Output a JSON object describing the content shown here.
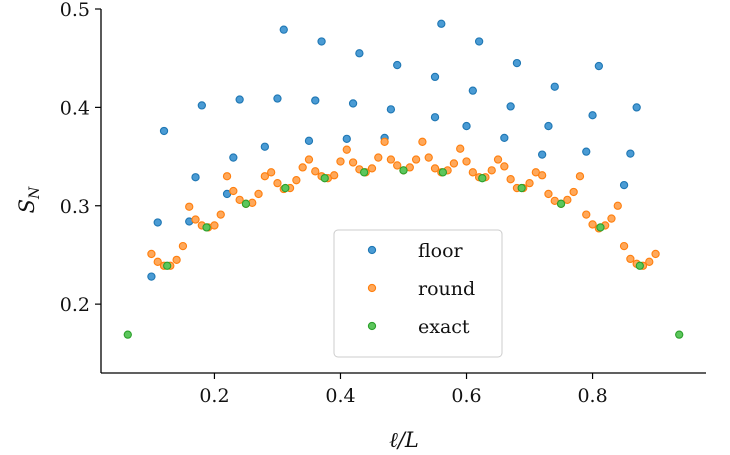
{
  "chart_data": {
    "type": "scatter",
    "xlabel": "ℓ/L",
    "ylabel": "S_N",
    "xlim": [
      0.02,
      0.98
    ],
    "ylim": [
      0.13,
      0.5
    ],
    "xticks": [
      0.2,
      0.4,
      0.6,
      0.8
    ],
    "yticks": [
      0.2,
      0.3,
      0.4,
      0.5
    ],
    "legend_position": "lower-center",
    "grid": false,
    "series": [
      {
        "name": "floor",
        "color": "#1f77b4",
        "fill": "#4a9bd4",
        "points": [
          [
            0.1,
            0.228
          ],
          [
            0.11,
            0.283
          ],
          [
            0.12,
            0.376
          ],
          [
            0.16,
            0.284
          ],
          [
            0.17,
            0.329
          ],
          [
            0.18,
            0.402
          ],
          [
            0.22,
            0.312
          ],
          [
            0.23,
            0.349
          ],
          [
            0.24,
            0.408
          ],
          [
            0.28,
            0.36
          ],
          [
            0.3,
            0.409
          ],
          [
            0.31,
            0.479
          ],
          [
            0.35,
            0.366
          ],
          [
            0.36,
            0.407
          ],
          [
            0.37,
            0.467
          ],
          [
            0.41,
            0.368
          ],
          [
            0.42,
            0.404
          ],
          [
            0.43,
            0.455
          ],
          [
            0.47,
            0.369
          ],
          [
            0.48,
            0.398
          ],
          [
            0.49,
            0.443
          ],
          [
            0.55,
            0.39
          ],
          [
            0.55,
            0.431
          ],
          [
            0.56,
            0.485
          ],
          [
            0.6,
            0.381
          ],
          [
            0.61,
            0.417
          ],
          [
            0.62,
            0.467
          ],
          [
            0.66,
            0.369
          ],
          [
            0.67,
            0.401
          ],
          [
            0.68,
            0.445
          ],
          [
            0.72,
            0.352
          ],
          [
            0.73,
            0.381
          ],
          [
            0.74,
            0.421
          ],
          [
            0.79,
            0.355
          ],
          [
            0.8,
            0.392
          ],
          [
            0.81,
            0.442
          ],
          [
            0.85,
            0.321
          ],
          [
            0.86,
            0.353
          ],
          [
            0.87,
            0.4
          ]
        ]
      },
      {
        "name": "round",
        "color": "#ff7f0e",
        "fill": "#ffa85a",
        "points": [
          [
            0.1,
            0.251
          ],
          [
            0.11,
            0.243
          ],
          [
            0.12,
            0.239
          ],
          [
            0.13,
            0.239
          ],
          [
            0.14,
            0.245
          ],
          [
            0.15,
            0.259
          ],
          [
            0.16,
            0.299
          ],
          [
            0.17,
            0.286
          ],
          [
            0.18,
            0.28
          ],
          [
            0.19,
            0.278
          ],
          [
            0.2,
            0.28
          ],
          [
            0.21,
            0.291
          ],
          [
            0.22,
            0.33
          ],
          [
            0.23,
            0.315
          ],
          [
            0.24,
            0.306
          ],
          [
            0.25,
            0.302
          ],
          [
            0.26,
            0.303
          ],
          [
            0.27,
            0.312
          ],
          [
            0.28,
            0.33
          ],
          [
            0.29,
            0.334
          ],
          [
            0.3,
            0.323
          ],
          [
            0.31,
            0.317
          ],
          [
            0.32,
            0.318
          ],
          [
            0.33,
            0.326
          ],
          [
            0.34,
            0.339
          ],
          [
            0.35,
            0.347
          ],
          [
            0.36,
            0.335
          ],
          [
            0.37,
            0.33
          ],
          [
            0.38,
            0.328
          ],
          [
            0.39,
            0.331
          ],
          [
            0.4,
            0.345
          ],
          [
            0.41,
            0.357
          ],
          [
            0.42,
            0.344
          ],
          [
            0.43,
            0.337
          ],
          [
            0.44,
            0.334
          ],
          [
            0.45,
            0.338
          ],
          [
            0.46,
            0.349
          ],
          [
            0.47,
            0.365
          ],
          [
            0.48,
            0.347
          ],
          [
            0.49,
            0.341
          ],
          [
            0.5,
            0.336
          ],
          [
            0.51,
            0.339
          ],
          [
            0.52,
            0.347
          ],
          [
            0.53,
            0.365
          ],
          [
            0.54,
            0.349
          ],
          [
            0.55,
            0.338
          ],
          [
            0.56,
            0.334
          ],
          [
            0.57,
            0.336
          ],
          [
            0.58,
            0.343
          ],
          [
            0.59,
            0.358
          ],
          [
            0.6,
            0.345
          ],
          [
            0.61,
            0.334
          ],
          [
            0.62,
            0.329
          ],
          [
            0.63,
            0.329
          ],
          [
            0.64,
            0.336
          ],
          [
            0.65,
            0.347
          ],
          [
            0.66,
            0.34
          ],
          [
            0.67,
            0.327
          ],
          [
            0.68,
            0.318
          ],
          [
            0.69,
            0.318
          ],
          [
            0.7,
            0.323
          ],
          [
            0.71,
            0.334
          ],
          [
            0.72,
            0.331
          ],
          [
            0.73,
            0.312
          ],
          [
            0.74,
            0.305
          ],
          [
            0.75,
            0.302
          ],
          [
            0.76,
            0.306
          ],
          [
            0.77,
            0.314
          ],
          [
            0.78,
            0.33
          ],
          [
            0.79,
            0.291
          ],
          [
            0.8,
            0.281
          ],
          [
            0.81,
            0.277
          ],
          [
            0.82,
            0.28
          ],
          [
            0.83,
            0.287
          ],
          [
            0.84,
            0.3
          ],
          [
            0.85,
            0.259
          ],
          [
            0.86,
            0.246
          ],
          [
            0.87,
            0.241
          ],
          [
            0.88,
            0.239
          ],
          [
            0.89,
            0.243
          ],
          [
            0.9,
            0.251
          ]
        ]
      },
      {
        "name": "exact",
        "color": "#2ca02c",
        "fill": "#5cc65c",
        "points": [
          [
            0.0625,
            0.169
          ],
          [
            0.125,
            0.239
          ],
          [
            0.1875,
            0.278
          ],
          [
            0.25,
            0.302
          ],
          [
            0.3125,
            0.318
          ],
          [
            0.375,
            0.328
          ],
          [
            0.4375,
            0.334
          ],
          [
            0.5,
            0.336
          ],
          [
            0.5625,
            0.334
          ],
          [
            0.625,
            0.328
          ],
          [
            0.6875,
            0.318
          ],
          [
            0.75,
            0.302
          ],
          [
            0.8125,
            0.278
          ],
          [
            0.875,
            0.239
          ],
          [
            0.9375,
            0.169
          ]
        ]
      }
    ]
  }
}
